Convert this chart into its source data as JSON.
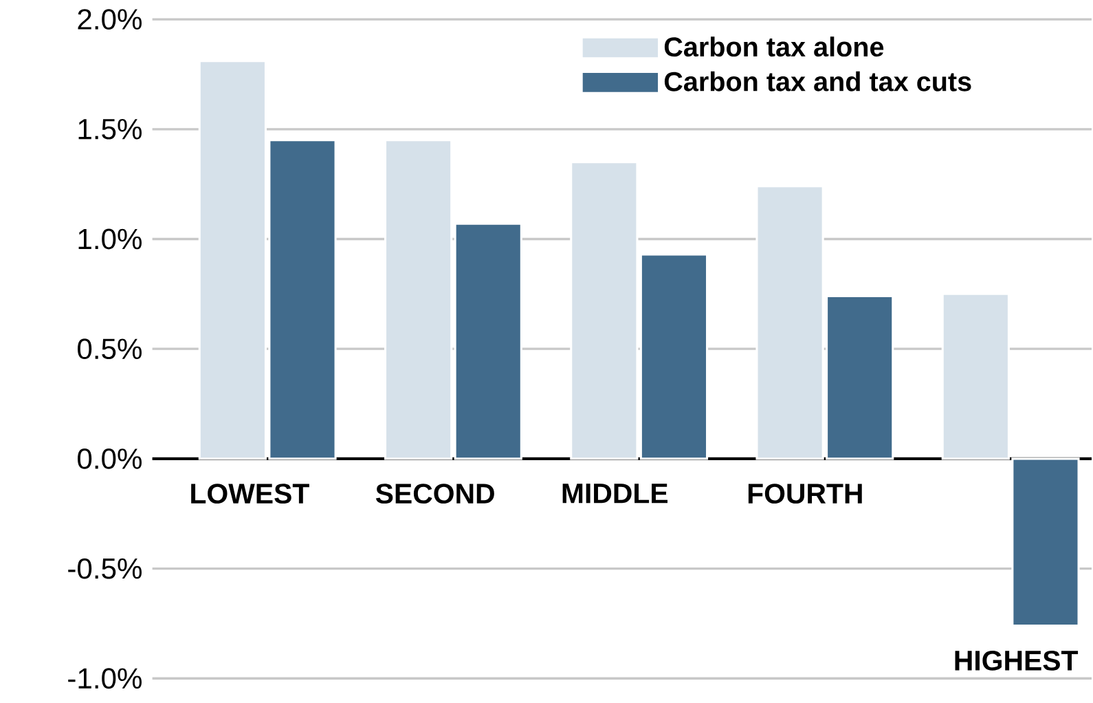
{
  "chart_data": {
    "type": "bar",
    "categories": [
      "LOWEST",
      "SECOND",
      "MIDDLE",
      "FOURTH",
      "HIGHEST"
    ],
    "series": [
      {
        "name": "Carbon tax alone",
        "color": "#d6e1ea",
        "values": [
          1.81,
          1.45,
          1.35,
          1.24,
          0.75
        ]
      },
      {
        "name": "Carbon tax and tax cuts",
        "color": "#416b8c",
        "values": [
          1.45,
          1.07,
          0.93,
          0.74,
          -0.76
        ]
      }
    ],
    "ylim": [
      -1,
      2
    ],
    "yticks": [
      {
        "value": -1,
        "label": "-1.0%"
      },
      {
        "value": -0.5,
        "label": "-0.5%"
      },
      {
        "value": 0,
        "label": "0.0%"
      },
      {
        "value": 0.5,
        "label": "0.5%"
      },
      {
        "value": 1,
        "label": "1.0%"
      },
      {
        "value": 1.5,
        "label": "1.5%"
      },
      {
        "value": 2,
        "label": "2.0%"
      }
    ],
    "grid": "y",
    "legend": "top right"
  }
}
